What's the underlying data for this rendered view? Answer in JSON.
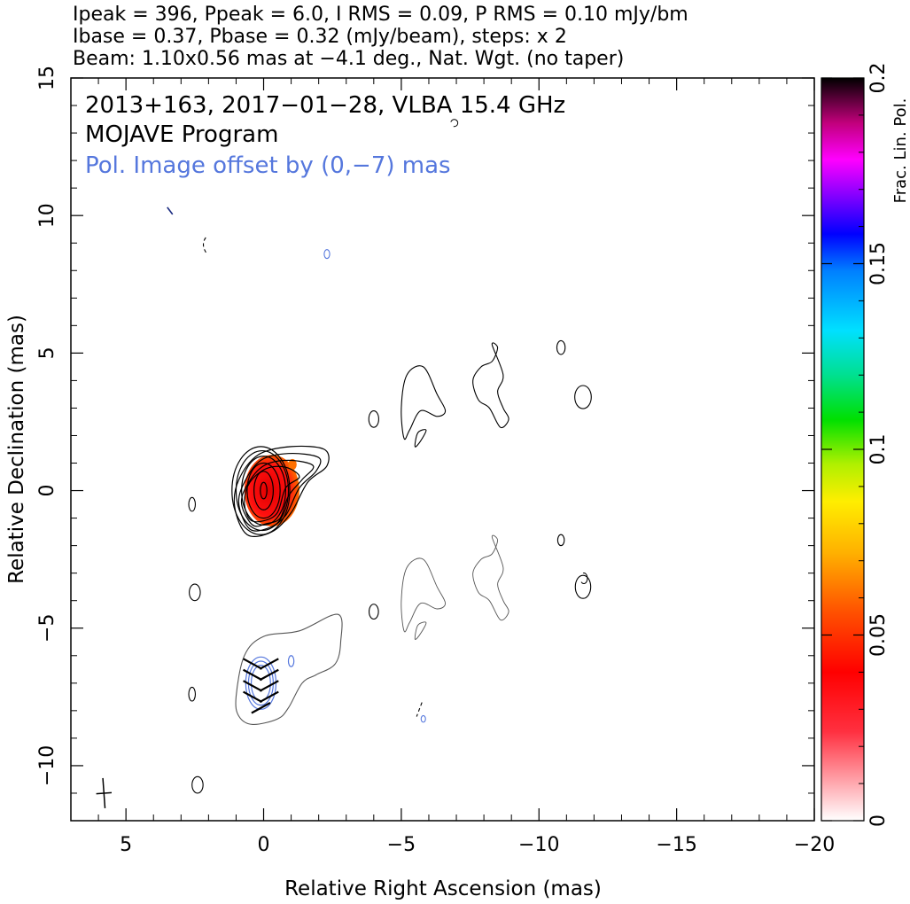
{
  "chart_data": {
    "type": "contour",
    "header_lines": [
      "Ipeak = 396, Ppeak = 6.0, I RMS = 0.09, P RMS = 0.10 mJy/bm",
      "Ibase = 0.37, Pbase = 0.32 (mJy/beam), steps: x 2",
      "Beam: 1.10x0.56 mas at −4.1 deg., Nat. Wgt. (no taper)"
    ],
    "annotations": [
      {
        "text": "2013+163, 2017−01−28, VLBA 15.4 GHz",
        "color": "#000000"
      },
      {
        "text": "MOJAVE Program",
        "color": "#000000"
      },
      {
        "text": "Pol. Image offset by (0,−7) mas",
        "color": "#5577dd"
      }
    ],
    "xlabel": "Relative Right Ascension (mas)",
    "ylabel": "Relative Declination (mas)",
    "xlim": [
      7,
      -20
    ],
    "ylim": [
      -12,
      15
    ],
    "x_ticks": [
      5,
      0,
      -5,
      -10,
      -15,
      -20
    ],
    "x_tick_labels": [
      "5",
      "0",
      "−5",
      "−10",
      "−15",
      "−20"
    ],
    "y_ticks": [
      15,
      10,
      5,
      0,
      -5,
      -10
    ],
    "y_tick_labels": [
      "15",
      "10",
      "5",
      "0",
      "−5",
      "−10"
    ],
    "colorbar": {
      "label": "Frac. Lin. Pol.",
      "range": [
        0,
        0.2
      ],
      "ticks": [
        0,
        0.05,
        0.1,
        0.15,
        0.2
      ],
      "tick_labels": [
        "0",
        "0.05",
        "0.1",
        "0.15",
        "0.2"
      ]
    },
    "core_contours": [
      {
        "cx": 0,
        "cy": 0,
        "rx": 0.35,
        "ry": 0.7
      },
      {
        "cx": 0,
        "cy": 0,
        "rx": 0.6,
        "ry": 1.0
      },
      {
        "cx": 0,
        "cy": 0,
        "rx": 0.8,
        "ry": 1.25
      },
      {
        "cx": 0.05,
        "cy": 0,
        "rx": 0.95,
        "ry": 1.45
      },
      {
        "cx": 0.1,
        "cy": 0,
        "rx": 1.05,
        "ry": 1.6
      }
    ],
    "jet_contours": [
      [
        [
          1.05,
          -0.6
        ],
        [
          0.9,
          0.4
        ],
        [
          0.2,
          1.3
        ],
        [
          -1,
          1.6
        ],
        [
          -2.2,
          1.5
        ],
        [
          -2.3,
          0.9
        ],
        [
          -1.6,
          0.3
        ],
        [
          -1,
          -0.8
        ],
        [
          -0.3,
          -1.5
        ],
        [
          0.6,
          -1.6
        ]
      ],
      [
        [
          0.9,
          -0.5
        ],
        [
          0.7,
          0.3
        ],
        [
          0.1,
          1.1
        ],
        [
          -0.9,
          1.35
        ],
        [
          -2,
          1.2
        ],
        [
          -1.9,
          0.7
        ],
        [
          -1.3,
          0.1
        ],
        [
          -0.8,
          -0.9
        ],
        [
          -0.2,
          -1.35
        ],
        [
          0.5,
          -1.4
        ]
      ],
      [
        [
          0.8,
          -0.5
        ],
        [
          0.6,
          0.2
        ],
        [
          0,
          0.9
        ],
        [
          -0.9,
          1.1
        ],
        [
          -1.8,
          0.9
        ],
        [
          -1.4,
          0.4
        ],
        [
          -0.9,
          -0.2
        ],
        [
          -0.6,
          -1
        ],
        [
          -0.1,
          -1.2
        ],
        [
          0.4,
          -1.25
        ]
      ],
      [
        [
          0.7,
          -0.4
        ],
        [
          0.5,
          0.3
        ],
        [
          -0.1,
          0.8
        ],
        [
          -0.8,
          0.85
        ],
        [
          -1.3,
          0.5
        ],
        [
          -0.8,
          0.1
        ],
        [
          -0.5,
          -0.8
        ],
        [
          0,
          -1.1
        ],
        [
          0.5,
          -1.05
        ]
      ]
    ],
    "outer_islands": [
      [
        [
          -5.2,
          4.2
        ],
        [
          -5.8,
          4.5
        ],
        [
          -6.3,
          3.5
        ],
        [
          -6.6,
          2.9
        ],
        [
          -6.3,
          2.7
        ],
        [
          -5.7,
          2.9
        ],
        [
          -5.3,
          2.2
        ],
        [
          -5.1,
          1.9
        ],
        [
          -5,
          3
        ]
      ],
      [
        [
          -7.6,
          4
        ],
        [
          -7.9,
          4.5
        ],
        [
          -8.3,
          4.7
        ],
        [
          -8.5,
          5.2
        ],
        [
          -8.3,
          5.3
        ],
        [
          -8.7,
          4.2
        ],
        [
          -8.5,
          3.6
        ],
        [
          -8.7,
          3
        ],
        [
          -8.9,
          2.6
        ],
        [
          -8.6,
          2.3
        ],
        [
          -8.2,
          3
        ],
        [
          -7.8,
          3.3
        ]
      ],
      [
        [
          -5.9,
          2.2
        ],
        [
          -5.7,
          1.8
        ],
        [
          -5.5,
          1.6
        ],
        [
          -5.6,
          2.1
        ]
      ]
    ],
    "small_blobs": [
      {
        "cx": -10.8,
        "cy": 5.2,
        "rx": 0.15,
        "ry": 0.25
      },
      {
        "cx": -11.6,
        "cy": 3.4,
        "rx": 0.3,
        "ry": 0.42
      },
      {
        "cx": -4,
        "cy": 2.6,
        "rx": 0.18,
        "ry": 0.3
      },
      {
        "cx": 2.6,
        "cy": -0.5,
        "rx": 0.12,
        "ry": 0.25
      },
      {
        "cx": 2.5,
        "cy": -3.7,
        "rx": 0.2,
        "ry": 0.3
      },
      {
        "cx": -10.8,
        "cy": -1.8,
        "rx": 0.12,
        "ry": 0.2
      },
      {
        "cx": -11.6,
        "cy": -3.5,
        "rx": 0.28,
        "ry": 0.42
      },
      {
        "cx": -4,
        "cy": -4.4,
        "rx": 0.17,
        "ry": 0.27
      },
      {
        "cx": 2.6,
        "cy": -7.4,
        "rx": 0.12,
        "ry": 0.25
      },
      {
        "cx": 2.4,
        "cy": -10.7,
        "rx": 0.2,
        "ry": 0.3
      }
    ],
    "stokes_i_offset_outline": [
      [
        1,
        -7.5
      ],
      [
        0.7,
        -6
      ],
      [
        0,
        -5.3
      ],
      [
        -1.3,
        -5.1
      ],
      [
        -2.7,
        -4.5
      ],
      [
        -2.8,
        -5.5
      ],
      [
        -2.6,
        -6.3
      ],
      [
        -1.9,
        -6.7
      ],
      [
        -1.4,
        -7
      ],
      [
        -0.9,
        -7.9
      ],
      [
        -0.5,
        -8.3
      ],
      [
        0.4,
        -8.5
      ],
      [
        0.9,
        -8.2
      ]
    ],
    "pol_contours": [
      {
        "cx": 0.1,
        "cy": -7,
        "rx": 0.55,
        "ry": 0.95
      },
      {
        "cx": 0.1,
        "cy": -7,
        "rx": 0.45,
        "ry": 0.8
      },
      {
        "cx": 0.1,
        "cy": -7,
        "rx": 0.35,
        "ry": 0.65
      }
    ],
    "evpa_vectors": [
      [
        0.4,
        -6.3
      ],
      [
        -0.2,
        -6.3
      ],
      [
        0.4,
        -6.7
      ],
      [
        -0.2,
        -6.7
      ],
      [
        0.4,
        -7.1
      ],
      [
        -0.2,
        -7.1
      ],
      [
        0.4,
        -7.5
      ],
      [
        -0.2,
        -7.5
      ],
      [
        0.1,
        -7.9
      ]
    ],
    "beam": {
      "major": 1.1,
      "minor": 0.56,
      "pa_deg": -4.1,
      "center": [
        5.8,
        -11
      ]
    }
  }
}
